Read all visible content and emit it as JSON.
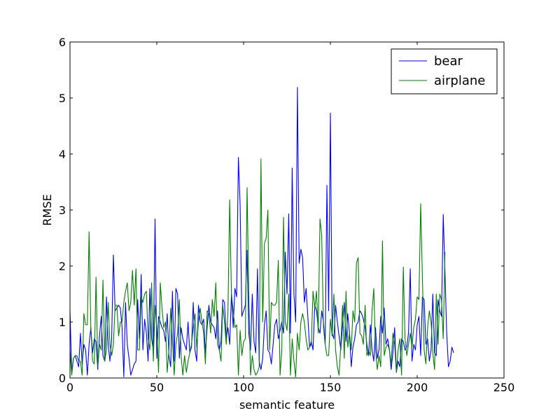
{
  "chart_data": {
    "type": "line",
    "title": "",
    "xlabel": "semantic feature",
    "ylabel": "RMSE",
    "xlim": [
      0,
      250
    ],
    "ylim": [
      0,
      6
    ],
    "xticks": [
      0,
      50,
      100,
      150,
      200,
      250
    ],
    "yticks": [
      0,
      1,
      2,
      3,
      4,
      5,
      6
    ],
    "grid": false,
    "legend_position": "top-right",
    "series": [
      {
        "name": "bear",
        "color": "#0000ff",
        "x_start": 0,
        "x_step": 1,
        "values": [
          1.2,
          0.1,
          0.35,
          0.4,
          0.3,
          0.2,
          0.8,
          0.25,
          0.6,
          0.5,
          0.05,
          0.6,
          0.9,
          0.45,
          0.7,
          0.65,
          0.15,
          0.75,
          1.1,
          0.4,
          0.3,
          1.45,
          0.6,
          0.3,
          0.7,
          2.2,
          1.2,
          1.25,
          1.3,
          1.25,
          0.9,
          0.02,
          1.35,
          0.6,
          0.35,
          0.05,
          0.15,
          0.25,
          0.3,
          1.4,
          0.7,
          1.85,
          0.5,
          1.05,
          0.8,
          0.3,
          1.6,
          0.7,
          0.5,
          2.84,
          0.35,
          1.1,
          1.0,
          0.9,
          0.85,
          0.65,
          1.15,
          0.4,
          0.2,
          1.55,
          0.3,
          1.6,
          1.5,
          0.35,
          0.9,
          0.7,
          0.6,
          0.5,
          1.0,
          0.45,
          0.55,
          1.35,
          0.5,
          0.3,
          1.3,
          1.0,
          0.95,
          1.05,
          0.45,
          0.9,
          1.3,
          1.0,
          0.95,
          0.9,
          0.7,
          1.2,
          0.5,
          0.65,
          1.4,
          1.35,
          0.7,
          0.9,
          0.6,
          1.5,
          0.9,
          1.6,
          1.45,
          3.94,
          3.1,
          1.1,
          1.2,
          1.3,
          2.28,
          0.8,
          0.5,
          1.5,
          0.65,
          0.45,
          1.95,
          0.3,
          0.15,
          0.35,
          0.95,
          1.2,
          0.5,
          0.45,
          0.25,
          0.6,
          0.95,
          1.05,
          0.7,
          0.85,
          1.0,
          0.8,
          2.25,
          1.5,
          2.93,
          0.8,
          3.75,
          1.5,
          1.0,
          5.19,
          2.05,
          2.3,
          2.15,
          1.35,
          1.6,
          1.1,
          0.55,
          0.65,
          0.5,
          1.3,
          1.2,
          0.9,
          0.8,
          1.2,
          1.0,
          0.6,
          3.44,
          1.2,
          4.73,
          0.8,
          0.7,
          1.3,
          1.0,
          0.75,
          0.5,
          0.95,
          1.35,
          0.65,
          1.15,
          0.8,
          0.2,
          0.55,
          0.7,
          0.95,
          1.0,
          1.2,
          1.15,
          1.05,
          0.9,
          0.6,
          0.4,
          0.95,
          0.5,
          0.3,
          0.9,
          0.35,
          0.5,
          1.1,
          0.8,
          1.25,
          0.6,
          0.7,
          0.5,
          0.15,
          0.45,
          0.9,
          0.1,
          0.3,
          0.2,
          0.7,
          0.65,
          0.5,
          0.55,
          0.8,
          1.95,
          0.3,
          0.6,
          0.5,
          0.95,
          1.1,
          0.4,
          1.45,
          1.4,
          0.6,
          0.7,
          0.3,
          0.5,
          1.5,
          0.45,
          0.4,
          1.4,
          1.2,
          1.1,
          2.92,
          1.9,
          0.8,
          0.2,
          0.3,
          0.55,
          0.45
        ]
      },
      {
        "name": "airplane",
        "color": "#008000",
        "x_start": 0,
        "x_step": 1,
        "values": [
          0.5,
          0.05,
          0.35,
          0.4,
          0.4,
          0.3,
          0.3,
          0.05,
          1.15,
          0.95,
          0.95,
          2.61,
          0.9,
          0.3,
          0.25,
          1.8,
          0.2,
          0.6,
          0.5,
          1.75,
          0.3,
          0.5,
          1.35,
          0.6,
          0.4,
          0.6,
          1.3,
          1.3,
          0.75,
          1.0,
          1.0,
          1.35,
          1.55,
          1.7,
          1.2,
          1.35,
          1.92,
          1.3,
          1.95,
          0.5,
          0.5,
          1.45,
          1.35,
          1.5,
          1.55,
          0.7,
          0.5,
          1.7,
          0.3,
          1.3,
          0.9,
          0.1,
          1.7,
          1.25,
          0.9,
          1.0,
          0.1,
          0.5,
          1.25,
          0.65,
          0.05,
          0.6,
          0.8,
          1.4,
          0.4,
          0.05,
          0.4,
          0.1,
          0.3,
          0.45,
          0.6,
          0.9,
          1.15,
          0.55,
          1.0,
          1.25,
          1.0,
          0.8,
          0.25,
          1.2,
          1.15,
          0.8,
          1.4,
          1.1,
          1.7,
          0.6,
          0.5,
          0.3,
          1.3,
          1.0,
          0.6,
          1.2,
          3.18,
          1.5,
          1.2,
          0.9,
          0.95,
          0.05,
          0.85,
          0.4,
          0.65,
          0.7,
          3.4,
          1.5,
          0.05,
          0.4,
          0.15,
          0.05,
          0.1,
          0.2,
          3.91,
          1.0,
          2.4,
          2.5,
          3.0,
          0.5,
          1.35,
          1.3,
          1.3,
          1.35,
          2.1,
          0.05,
          0.5,
          2.87,
          1.0,
          0.85,
          1.5,
          0.05,
          0.7,
          0.3,
          0.02,
          0.8,
          0.5,
          1.0,
          1.15,
          1.0,
          0.7,
          0.5,
          0.55,
          0.6,
          1.55,
          1.25,
          1.55,
          0.8,
          2.84,
          2.55,
          0.9,
          0.6,
          0.4,
          0.4,
          1.05,
          0.75,
          1.5,
          0.5,
          0.2,
          0.05,
          0.6,
          1.3,
          0.35,
          1.55,
          0.55,
          0.8,
          0.5,
          1.2,
          1.0,
          2.05,
          2.15,
          0.8,
          0.75,
          0.6,
          1.3,
          0.4,
          0.5,
          0.4,
          1.2,
          1.6,
          0.5,
          0.15,
          0.4,
          0.2,
          2.45,
          0.4,
          0.55,
          0.6,
          0.5,
          0.25,
          0.8,
          0.6,
          0.1,
          0.5,
          0.7,
          0.05,
          1.98,
          0.7,
          0.4,
          0.6,
          0.8,
          0.55,
          0.9,
          1.05,
          1.45,
          1.4,
          3.11,
          1.8,
          0.5,
          0.25,
          0.9,
          1.2,
          1.0,
          0.45,
          0.15,
          1.5,
          0.6,
          1.5,
          1.4,
          0.7,
          2.25
        ]
      }
    ]
  }
}
